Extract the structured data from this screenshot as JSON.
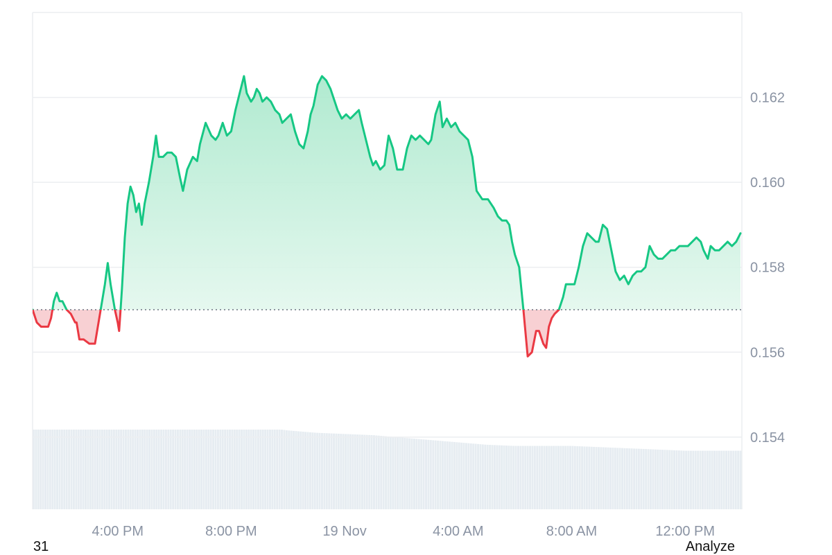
{
  "chart_data": {
    "type": "area",
    "baseline": 0.157,
    "ylim": [
      0.1523,
      0.164
    ],
    "y_ticks": [
      0.154,
      0.156,
      0.158,
      0.16,
      0.162
    ],
    "y_tick_labels": [
      "0.154",
      "0.156",
      "0.158",
      "0.160",
      "0.162"
    ],
    "x_range": [
      0.0,
      25.0
    ],
    "x_ticks": [
      3.0,
      7.0,
      11.0,
      15.0,
      19.0,
      23.0
    ],
    "x_tick_labels": [
      "4:00 PM",
      "8:00 PM",
      "19 Nov",
      "4:00 AM",
      "8:00 AM",
      "12:00 PM"
    ],
    "grid": true,
    "colors": {
      "up_line": "#16c784",
      "up_fill_top": "#a8e8cb",
      "up_fill_bottom": "#eefaf4",
      "down_line": "#ea3943",
      "down_fill": "#f6c4c8",
      "volume": "#e6ecf1",
      "grid": "#eceef1",
      "baseline": "#6b7280"
    },
    "series": [
      {
        "values": [
          [
            0.0,
            0.157
          ],
          [
            0.15,
            0.1567
          ],
          [
            0.3,
            0.1566
          ],
          [
            0.5,
            0.1566
          ],
          [
            0.55,
            0.1566
          ],
          [
            0.65,
            0.1568
          ],
          [
            0.75,
            0.1572
          ],
          [
            0.85,
            0.1574
          ],
          [
            0.95,
            0.1572
          ],
          [
            1.05,
            0.1572
          ],
          [
            1.2,
            0.157
          ],
          [
            1.35,
            0.1569
          ],
          [
            1.5,
            0.1567
          ],
          [
            1.55,
            0.1567
          ],
          [
            1.65,
            0.1563
          ],
          [
            1.8,
            0.1563
          ],
          [
            2.0,
            0.1562
          ],
          [
            2.2,
            0.1562
          ],
          [
            2.3,
            0.1566
          ],
          [
            2.4,
            0.157
          ],
          [
            2.55,
            0.1576
          ],
          [
            2.65,
            0.1581
          ],
          [
            2.75,
            0.1576
          ],
          [
            2.9,
            0.157
          ],
          [
            3.0,
            0.1567
          ],
          [
            3.05,
            0.1565
          ],
          [
            3.1,
            0.157
          ],
          [
            3.15,
            0.1575
          ],
          [
            3.25,
            0.1587
          ],
          [
            3.35,
            0.1595
          ],
          [
            3.45,
            0.1599
          ],
          [
            3.55,
            0.1597
          ],
          [
            3.65,
            0.1593
          ],
          [
            3.75,
            0.1595
          ],
          [
            3.85,
            0.159
          ],
          [
            3.95,
            0.1595
          ],
          [
            4.1,
            0.16
          ],
          [
            4.25,
            0.1606
          ],
          [
            4.35,
            0.1611
          ],
          [
            4.45,
            0.1606
          ],
          [
            4.6,
            0.1606
          ],
          [
            4.75,
            0.1607
          ],
          [
            4.9,
            0.1607
          ],
          [
            5.05,
            0.1606
          ],
          [
            5.2,
            0.1601
          ],
          [
            5.3,
            0.1598
          ],
          [
            5.45,
            0.1603
          ],
          [
            5.65,
            0.1606
          ],
          [
            5.8,
            0.1605
          ],
          [
            5.9,
            0.1609
          ],
          [
            6.1,
            0.1614
          ],
          [
            6.3,
            0.1611
          ],
          [
            6.45,
            0.161
          ],
          [
            6.55,
            0.1611
          ],
          [
            6.7,
            0.1614
          ],
          [
            6.85,
            0.1611
          ],
          [
            7.0,
            0.1612
          ],
          [
            7.15,
            0.1617
          ],
          [
            7.3,
            0.1621
          ],
          [
            7.45,
            0.1625
          ],
          [
            7.55,
            0.1621
          ],
          [
            7.7,
            0.1619
          ],
          [
            7.8,
            0.162
          ],
          [
            7.9,
            0.1622
          ],
          [
            8.0,
            0.1621
          ],
          [
            8.1,
            0.1619
          ],
          [
            8.25,
            0.162
          ],
          [
            8.4,
            0.1619
          ],
          [
            8.55,
            0.1617
          ],
          [
            8.7,
            0.1616
          ],
          [
            8.8,
            0.1614
          ],
          [
            8.95,
            0.1615
          ],
          [
            9.1,
            0.1616
          ],
          [
            9.25,
            0.1612
          ],
          [
            9.4,
            0.1609
          ],
          [
            9.55,
            0.1608
          ],
          [
            9.7,
            0.1612
          ],
          [
            9.8,
            0.1616
          ],
          [
            9.9,
            0.1618
          ],
          [
            10.05,
            0.1623
          ],
          [
            10.2,
            0.1625
          ],
          [
            10.35,
            0.1624
          ],
          [
            10.5,
            0.1622
          ],
          [
            10.6,
            0.162
          ],
          [
            10.75,
            0.1617
          ],
          [
            10.9,
            0.1615
          ],
          [
            11.05,
            0.1616
          ],
          [
            11.2,
            0.1615
          ],
          [
            11.35,
            0.1616
          ],
          [
            11.5,
            0.1617
          ],
          [
            11.6,
            0.1614
          ],
          [
            11.75,
            0.161
          ],
          [
            11.9,
            0.1606
          ],
          [
            12.0,
            0.1604
          ],
          [
            12.1,
            0.1605
          ],
          [
            12.25,
            0.1603
          ],
          [
            12.4,
            0.1604
          ],
          [
            12.55,
            0.1611
          ],
          [
            12.7,
            0.1608
          ],
          [
            12.85,
            0.1603
          ],
          [
            12.95,
            0.1603
          ],
          [
            13.05,
            0.1603
          ],
          [
            13.2,
            0.1608
          ],
          [
            13.35,
            0.1611
          ],
          [
            13.5,
            0.161
          ],
          [
            13.65,
            0.1611
          ],
          [
            13.8,
            0.161
          ],
          [
            13.95,
            0.1609
          ],
          [
            14.05,
            0.161
          ],
          [
            14.2,
            0.1616
          ],
          [
            14.35,
            0.1619
          ],
          [
            14.45,
            0.1613
          ],
          [
            14.6,
            0.1615
          ],
          [
            14.75,
            0.1613
          ],
          [
            14.9,
            0.1614
          ],
          [
            15.05,
            0.1612
          ],
          [
            15.2,
            0.1611
          ],
          [
            15.35,
            0.161
          ],
          [
            15.5,
            0.1606
          ],
          [
            15.65,
            0.1598
          ],
          [
            15.85,
            0.1596
          ],
          [
            16.05,
            0.1596
          ],
          [
            16.25,
            0.1594
          ],
          [
            16.4,
            0.1592
          ],
          [
            16.55,
            0.1591
          ],
          [
            16.7,
            0.1591
          ],
          [
            16.8,
            0.159
          ],
          [
            16.9,
            0.1586
          ],
          [
            17.0,
            0.1583
          ],
          [
            17.15,
            0.158
          ],
          [
            17.3,
            0.157
          ],
          [
            17.45,
            0.1559
          ],
          [
            17.6,
            0.156
          ],
          [
            17.75,
            0.1565
          ],
          [
            17.85,
            0.1565
          ],
          [
            18.0,
            0.1562
          ],
          [
            18.1,
            0.1561
          ],
          [
            18.2,
            0.1566
          ],
          [
            18.3,
            0.1568
          ],
          [
            18.4,
            0.1569
          ],
          [
            18.55,
            0.157
          ],
          [
            18.7,
            0.1573
          ],
          [
            18.8,
            0.1576
          ],
          [
            18.95,
            0.1576
          ],
          [
            19.1,
            0.1576
          ],
          [
            19.25,
            0.158
          ],
          [
            19.4,
            0.1585
          ],
          [
            19.55,
            0.1588
          ],
          [
            19.7,
            0.1587
          ],
          [
            19.85,
            0.1586
          ],
          [
            19.95,
            0.1586
          ],
          [
            20.1,
            0.159
          ],
          [
            20.25,
            0.1589
          ],
          [
            20.4,
            0.1584
          ],
          [
            20.55,
            0.1579
          ],
          [
            20.7,
            0.1577
          ],
          [
            20.85,
            0.1578
          ],
          [
            21.0,
            0.1576
          ],
          [
            21.15,
            0.1578
          ],
          [
            21.3,
            0.1579
          ],
          [
            21.45,
            0.1579
          ],
          [
            21.6,
            0.158
          ],
          [
            21.75,
            0.1585
          ],
          [
            21.9,
            0.1583
          ],
          [
            22.05,
            0.1582
          ],
          [
            22.2,
            0.1582
          ],
          [
            22.35,
            0.1583
          ],
          [
            22.5,
            0.1584
          ],
          [
            22.65,
            0.1584
          ],
          [
            22.8,
            0.1585
          ],
          [
            22.95,
            0.1585
          ],
          [
            23.1,
            0.1585
          ],
          [
            23.25,
            0.1586
          ],
          [
            23.4,
            0.1587
          ],
          [
            23.55,
            0.1586
          ],
          [
            23.65,
            0.1584
          ],
          [
            23.8,
            0.1582
          ],
          [
            23.9,
            0.1585
          ],
          [
            24.05,
            0.1584
          ],
          [
            24.2,
            0.1584
          ],
          [
            24.35,
            0.1585
          ],
          [
            24.5,
            0.1586
          ],
          [
            24.65,
            0.1585
          ],
          [
            24.8,
            0.1586
          ],
          [
            24.95,
            0.1588
          ]
        ]
      }
    ],
    "volume": {
      "relative_values": [
        [
          0.0,
          0.77
        ],
        [
          1.0,
          0.77
        ],
        [
          2.0,
          0.77
        ],
        [
          2.5,
          0.77
        ],
        [
          3.0,
          0.76
        ],
        [
          4.0,
          0.75
        ],
        [
          5.0,
          0.74
        ],
        [
          6.0,
          0.73
        ],
        [
          7.0,
          0.71
        ],
        [
          8.0,
          0.69
        ],
        [
          9.0,
          0.66
        ],
        [
          10.0,
          0.64
        ],
        [
          11.0,
          0.63
        ],
        [
          12.0,
          0.62
        ],
        [
          13.0,
          0.6
        ],
        [
          14.0,
          0.58
        ],
        [
          15.0,
          0.56
        ],
        [
          16.0,
          0.54
        ],
        [
          17.0,
          0.53
        ],
        [
          18.0,
          0.53
        ],
        [
          19.0,
          0.53
        ],
        [
          20.0,
          0.52
        ],
        [
          21.0,
          0.51
        ],
        [
          22.0,
          0.5
        ],
        [
          23.0,
          0.49
        ],
        [
          24.0,
          0.49
        ],
        [
          25.0,
          0.49
        ]
      ]
    }
  },
  "footer": {
    "left_text": "31",
    "right_text": "Analyze"
  }
}
